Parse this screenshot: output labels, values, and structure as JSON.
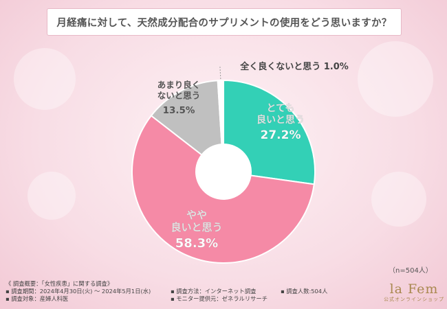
{
  "title": "月経痛に対して、天然成分配合のサプリメントの使用をどう思いますか？",
  "sample_note": "（n=504人）",
  "survey": {
    "heading": "《 調査概要：「女性疾患」に関する調査》",
    "period": "▪ 調査期間：2024年4月30日(火) ～ 2024年5月1日(水)",
    "method": "▪ 調査方法：インターネット調査",
    "count": "▪ 調査人数:504人",
    "target": "▪ 調査対象：産婦人科医",
    "provider": "▪ モニター提供元：ゼネラルリサーチ"
  },
  "logo": {
    "brand": "la Fem",
    "sub": "公式オンラインショップ"
  },
  "colors": {
    "teal": "#33d0b6",
    "pink": "#f58aa6",
    "gray": "#c0c0c0",
    "white": "#ffffff",
    "frame": "#e7b8c6"
  },
  "chart_data": {
    "type": "pie",
    "title": "月経痛に対して、天然成分配合のサプリメントの使用をどう思いますか？",
    "slices": [
      {
        "label": "とても良いと思う",
        "value": 27.2,
        "value_label": "27.2%",
        "color": "#33d0b6"
      },
      {
        "label": "やや良いと思う",
        "value": 58.3,
        "value_label": "58.3%",
        "color": "#f58aa6"
      },
      {
        "label": "あまり良くないと思う",
        "value": 13.5,
        "value_label": "13.5%",
        "color": "#c0c0c0"
      },
      {
        "label": "全く良くないと思う",
        "value": 1.0,
        "value_label": "1.0%",
        "color": "#ffffff"
      }
    ]
  }
}
